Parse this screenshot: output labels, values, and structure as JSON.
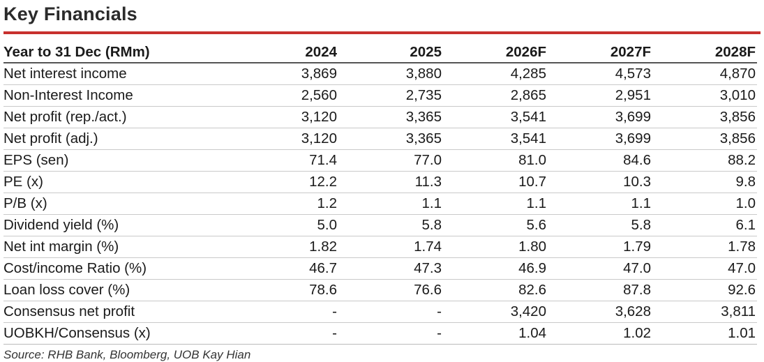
{
  "title": "Key Financials",
  "table": {
    "headers": [
      "Year to 31 Dec (RMm)",
      "2024",
      "2025",
      "2026F",
      "2027F",
      "2028F"
    ],
    "rows": [
      {
        "label": "Net interest income",
        "values": [
          "3,869",
          "3,880",
          "4,285",
          "4,573",
          "4,870"
        ]
      },
      {
        "label": "Non-Interest Income",
        "values": [
          "2,560",
          "2,735",
          "2,865",
          "2,951",
          "3,010"
        ]
      },
      {
        "label": "Net profit (rep./act.)",
        "values": [
          "3,120",
          "3,365",
          "3,541",
          "3,699",
          "3,856"
        ]
      },
      {
        "label": "Net profit (adj.)",
        "values": [
          "3,120",
          "3,365",
          "3,541",
          "3,699",
          "3,856"
        ]
      },
      {
        "label": "EPS (sen)",
        "values": [
          "71.4",
          "77.0",
          "81.0",
          "84.6",
          "88.2"
        ]
      },
      {
        "label": "PE (x)",
        "values": [
          "12.2",
          "11.3",
          "10.7",
          "10.3",
          "9.8"
        ]
      },
      {
        "label": "P/B (x)",
        "values": [
          "1.2",
          "1.1",
          "1.1",
          "1.1",
          "1.0"
        ]
      },
      {
        "label": "Dividend yield (%)",
        "values": [
          "5.0",
          "5.8",
          "5.6",
          "5.8",
          "6.1"
        ]
      },
      {
        "label": "Net int margin (%)",
        "values": [
          "1.82",
          "1.74",
          "1.80",
          "1.79",
          "1.78"
        ]
      },
      {
        "label": "Cost/income Ratio (%)",
        "values": [
          "46.7",
          "47.3",
          "46.9",
          "47.0",
          "47.0"
        ]
      },
      {
        "label": "Loan loss cover (%)",
        "values": [
          "78.6",
          "76.6",
          "82.6",
          "87.8",
          "92.6"
        ]
      },
      {
        "label": "Consensus net profit",
        "values": [
          "-",
          "-",
          "3,420",
          "3,628",
          "3,811"
        ]
      },
      {
        "label": "UOBKH/Consensus (x)",
        "values": [
          "-",
          "-",
          "1.04",
          "1.02",
          "1.01"
        ]
      }
    ]
  },
  "source": "Source: RHB Bank, Bloomberg, UOB Kay Hian",
  "colors": {
    "accent_rule": "#c8312e",
    "text": "#1a1a1a"
  }
}
